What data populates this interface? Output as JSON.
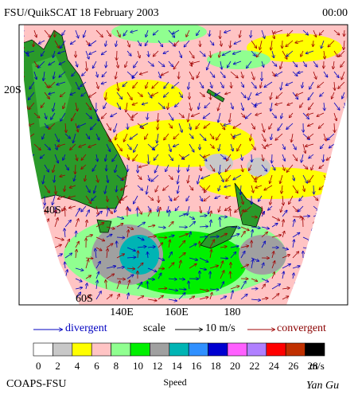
{
  "header": {
    "title": "FSU/QuikSCAT 18 February 2003",
    "time": "00:00"
  },
  "map": {
    "lat_labels": [
      "20S",
      "40S",
      "60S"
    ],
    "lon_labels": [
      "140E",
      "160E",
      "180"
    ]
  },
  "legend": {
    "divergent": "divergent",
    "scale": "scale",
    "scale_value": "10 m/s",
    "convergent": "convergent"
  },
  "colorbar": {
    "ticks": [
      0,
      2,
      4,
      6,
      8,
      10,
      12,
      14,
      16,
      18,
      20,
      22,
      24,
      26,
      28
    ],
    "colors": [
      "#ffffff",
      "#c8c8c8",
      "#ffff00",
      "#ffc4c4",
      "#90ff90",
      "#00f000",
      "#a0a0a0",
      "#00b4b4",
      "#3090ff",
      "#0000d0",
      "#ff60ff",
      "#b080ff",
      "#ff0000",
      "#c03000",
      "#000000"
    ],
    "unit": "m/s",
    "label": "Speed"
  },
  "footer": {
    "credit": "COAPS-FSU",
    "author": "Yan Gu"
  }
}
